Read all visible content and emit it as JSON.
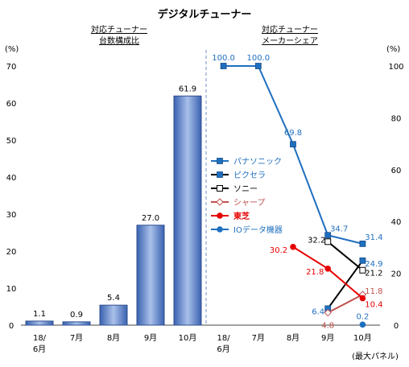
{
  "chart_data": [
    {
      "type": "bar",
      "title": "デジタルチューナー",
      "subtitle": "対応チューナー\n台数構成比",
      "y_unit": "(%)",
      "categories": [
        "18/\n6月",
        "7月",
        "8月",
        "9月",
        "10月"
      ],
      "values": [
        1.1,
        0.9,
        5.4,
        27.0,
        61.9
      ],
      "value_labels": [
        "1.1",
        "0.9",
        "5.4",
        "27.0",
        "61.9"
      ],
      "ylim": [
        0,
        70
      ],
      "yticks": [
        "0",
        "10",
        "20",
        "30",
        "40",
        "50",
        "60",
        "70"
      ],
      "grid": false,
      "bar_color": "#5b7fc9"
    },
    {
      "type": "line",
      "subtitle": "対応チューナー\nメーカーシェア",
      "y_unit": "(%)",
      "categories": [
        "18/\n6月",
        "7月",
        "8月",
        "9月",
        "10月"
      ],
      "x_note": "(最大パネル)",
      "ylim": [
        0,
        100
      ],
      "yticks": [
        "0",
        "20",
        "40",
        "60",
        "80",
        "100"
      ],
      "legend_position": "left",
      "series": [
        {
          "name": "パナソニック",
          "color": "#1f6fbf",
          "marker": "square-filled",
          "values": [
            100.0,
            100.0,
            69.8,
            34.7,
            31.4
          ],
          "labels": [
            "100.0",
            "100.0",
            "69.8",
            "34.7",
            "31.4"
          ]
        },
        {
          "name": "ピクセラ",
          "color": "#000000",
          "marker_fill": "#1f6fbf",
          "marker": "square-filled",
          "values": [
            null,
            null,
            null,
            6.4,
            24.9
          ],
          "labels": [
            null,
            null,
            null,
            "6.4",
            "24.9"
          ]
        },
        {
          "name": "ソニー",
          "color": "#000000",
          "marker": "square-open",
          "values": [
            null,
            null,
            null,
            32.2,
            21.2
          ],
          "labels": [
            null,
            null,
            null,
            "32.2",
            "21.2"
          ]
        },
        {
          "name": "シャープ",
          "color": "#c0504d",
          "marker": "diamond-open",
          "values": [
            null,
            null,
            null,
            4.8,
            11.8
          ],
          "labels": [
            null,
            null,
            null,
            "4.8",
            "11.8"
          ]
        },
        {
          "name": "東芝",
          "color": "#e60000",
          "marker": "circle-filled",
          "values": [
            null,
            null,
            30.2,
            21.8,
            10.4
          ],
          "labels": [
            null,
            null,
            "30.2",
            "21.8",
            "10.4"
          ]
        },
        {
          "name": "IOデータ機器",
          "color": "#1f6fbf",
          "marker": "circle-filled",
          "values": [
            null,
            null,
            null,
            null,
            0.2
          ],
          "labels": [
            null,
            null,
            null,
            null,
            "0.2"
          ]
        }
      ]
    }
  ]
}
